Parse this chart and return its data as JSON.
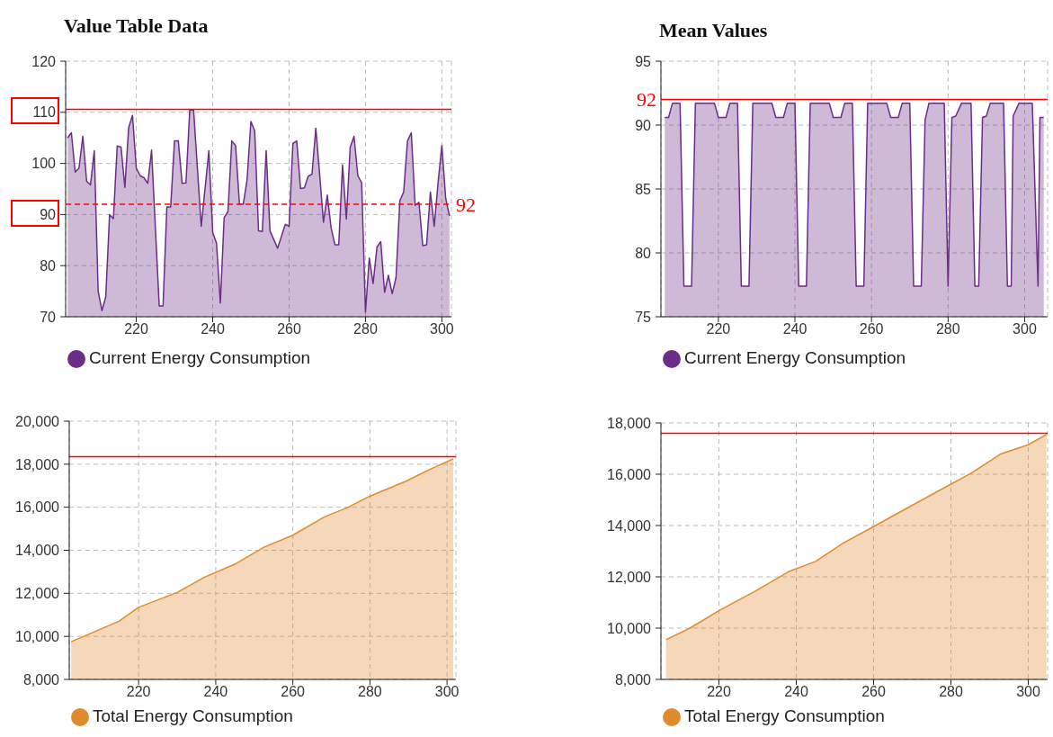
{
  "chart_data": [
    {
      "type": "area",
      "title": "Value Table Data",
      "x": [
        202,
        203,
        204,
        205,
        206,
        207,
        208,
        209,
        210,
        211,
        212,
        213,
        214,
        215,
        216,
        217,
        218,
        219,
        220,
        221,
        222,
        223,
        224,
        226,
        227,
        228,
        229,
        230,
        231,
        232,
        233,
        234,
        235,
        237,
        239,
        240,
        241,
        242,
        243,
        244,
        245,
        246,
        247,
        248,
        249,
        250,
        251,
        252,
        253,
        254,
        255,
        257,
        259,
        260,
        261,
        262,
        263,
        264,
        265,
        266,
        267,
        268,
        269,
        270,
        271,
        272,
        273,
        274,
        275,
        276,
        277,
        278,
        279,
        280,
        281,
        282,
        283,
        284,
        285,
        286,
        287,
        288,
        289,
        290,
        291,
        292,
        293,
        294,
        295,
        296,
        297,
        298,
        299,
        300,
        301,
        302
      ],
      "series": [
        {
          "name": "Current Energy Consumption",
          "color": "#6b2d87",
          "values": [
            105,
            106,
            98.3,
            99.1,
            105.3,
            96.5,
            95.8,
            102.5,
            75.1,
            71.2,
            73.9,
            90,
            89.2,
            103.4,
            103.2,
            95.3,
            107,
            109.4,
            99.1,
            97.6,
            97.2,
            96.1,
            102.6,
            72.1,
            72.1,
            91.5,
            91.5,
            104.4,
            104.4,
            96.1,
            96.2,
            110.5,
            110.4,
            87.7,
            102.5,
            86.5,
            84.4,
            72.7,
            89.4,
            90.6,
            104.4,
            103.5,
            92.1,
            92,
            96.8,
            108.2,
            106.4,
            86.8,
            86.7,
            102.5,
            86.8,
            83.4,
            88.1,
            87.7,
            103.9,
            104.4,
            95.1,
            95.2,
            97.5,
            97.9,
            106.9,
            97.9,
            88.5,
            93.8,
            87.4,
            84.1,
            84.1,
            99.7,
            89.1,
            103.2,
            105.3,
            97.6,
            96.2,
            70.9,
            81.5,
            76.5,
            83.6,
            84.7,
            74.8,
            78.1,
            74.5,
            77.7,
            92.7,
            94.4,
            104.4,
            106,
            91.8,
            92.4,
            83.9,
            84.1,
            94.4,
            87.7,
            96.2,
            103.5,
            93.2,
            89.7
          ]
        }
      ],
      "xlim": [
        201.5,
        302.5
      ],
      "xticks": [
        220,
        240,
        260,
        280,
        300
      ],
      "ylim": [
        70,
        120
      ],
      "yticks": [
        70,
        80,
        90,
        100,
        110,
        120
      ],
      "grid": true,
      "legend": "bottom left",
      "ref_lines": [
        {
          "axis": "y",
          "value": 110.6,
          "color": "#ff0000",
          "line_style": "solid"
        },
        {
          "axis": "y",
          "value": 92,
          "label": "92",
          "color": "#ff0000",
          "line_style": "dashed"
        }
      ]
    },
    {
      "type": "area",
      "title": "Mean Values",
      "x": [
        206,
        207,
        208,
        210,
        211,
        213,
        214,
        219,
        220,
        222,
        223,
        225,
        226,
        228,
        229,
        234,
        235,
        237,
        238,
        240,
        241,
        243,
        244,
        249,
        250,
        252,
        253,
        255,
        256,
        258,
        259,
        264,
        265,
        267,
        268,
        270,
        271,
        273,
        274,
        275,
        279,
        280,
        281,
        282,
        283.5,
        286,
        287,
        288,
        289,
        290,
        291,
        294.5,
        295.5,
        296.5,
        297,
        298.5,
        302,
        303.5,
        304,
        305
      ],
      "series": [
        {
          "name": "Current Energy Consumption",
          "color": "#6b2d87",
          "values": [
            90.6,
            90.6,
            91.7,
            91.7,
            77.4,
            77.4,
            91.7,
            91.7,
            90.6,
            90.6,
            91.7,
            91.7,
            77.4,
            77.4,
            91.7,
            91.7,
            90.6,
            90.6,
            91.7,
            91.7,
            77.4,
            77.4,
            91.7,
            91.7,
            90.6,
            90.6,
            91.7,
            91.7,
            77.4,
            77.4,
            91.7,
            91.7,
            90.6,
            90.6,
            91.7,
            91.7,
            77.4,
            77.4,
            90.4,
            91.7,
            91.7,
            77.4,
            90.6,
            90.7,
            91.7,
            91.7,
            77.4,
            77.4,
            90.6,
            90.7,
            91.7,
            91.7,
            77.4,
            77.4,
            90.7,
            91.7,
            91.7,
            77.4,
            90.6,
            90.6
          ]
        }
      ],
      "xlim": [
        205,
        306
      ],
      "xticks": [
        220,
        240,
        260,
        280,
        300
      ],
      "ylim": [
        75,
        95
      ],
      "yticks": [
        75,
        80,
        85,
        90,
        95
      ],
      "grid": true,
      "legend": "bottom left",
      "ref_lines": [
        {
          "axis": "y",
          "value": 92,
          "label": "92",
          "color": "#ff0000",
          "line_style": "solid"
        }
      ]
    },
    {
      "type": "area",
      "x": [
        202.5,
        214.9,
        220,
        230.1,
        237.1,
        244.9,
        252.6,
        260,
        268.2,
        274.4,
        279.8,
        289.2,
        295.4,
        301.6
      ],
      "series": [
        {
          "name": "Total Energy Consumption",
          "color": "#e08a2e",
          "values": [
            9750,
            10700,
            11350,
            12050,
            12750,
            13350,
            14150,
            14700,
            15550,
            16000,
            16500,
            17200,
            17750,
            18250
          ]
        }
      ],
      "xlim": [
        202,
        302.3
      ],
      "xticks": [
        220,
        240,
        260,
        280,
        300
      ],
      "ylim": [
        8000,
        20000
      ],
      "yticks": [
        {
          "value": 8000,
          "label": "8,000"
        },
        {
          "value": 10000,
          "label": "10,000"
        },
        {
          "value": 12000,
          "label": "12,000"
        },
        {
          "value": 14000,
          "label": "14,000"
        },
        {
          "value": 16000,
          "label": "16,000"
        },
        {
          "value": 18000,
          "label": "18,000"
        },
        {
          "value": 20000,
          "label": "20,000"
        }
      ],
      "grid": true,
      "legend": "bottom left",
      "ref_lines": [
        {
          "axis": "y",
          "value": 18350,
          "color": "#ff0000",
          "line_style": "solid"
        }
      ]
    },
    {
      "type": "area",
      "x": [
        206.3,
        212.5,
        220.2,
        229.5,
        238,
        245,
        252,
        260.5,
        268.3,
        276.8,
        285.3,
        293,
        300,
        304.7
      ],
      "series": [
        {
          "name": "Total Energy Consumption",
          "color": "#e08a2e",
          "values": [
            9550,
            10000,
            10700,
            11450,
            12200,
            12600,
            13300,
            14000,
            14650,
            15350,
            16050,
            16800,
            17150,
            17550
          ]
        }
      ],
      "xlim": [
        205,
        305
      ],
      "xticks": [
        220,
        240,
        260,
        280,
        300
      ],
      "ylim": [
        8000,
        18000
      ],
      "yticks": [
        {
          "value": 8000,
          "label": "8,000"
        },
        {
          "value": 10000,
          "label": "10,000"
        },
        {
          "value": 12000,
          "label": "12,000"
        },
        {
          "value": 14000,
          "label": "14,000"
        },
        {
          "value": 16000,
          "label": "16,000"
        },
        {
          "value": 18000,
          "label": "18,000"
        }
      ],
      "grid": true,
      "legend": "bottom left",
      "ref_lines": [
        {
          "axis": "y",
          "value": 17600,
          "color": "#ff0000",
          "line_style": "solid"
        }
      ]
    }
  ]
}
